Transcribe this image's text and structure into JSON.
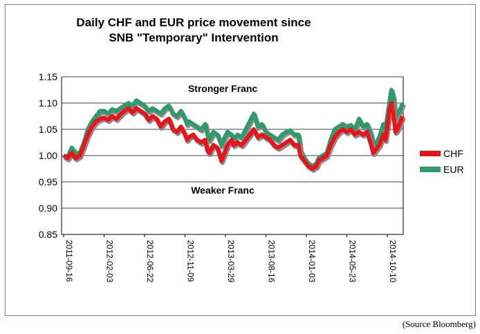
{
  "chart_data": {
    "type": "line",
    "title_lines": [
      "Daily CHF and EUR price movement since",
      "SNB \"Temporary\" Intervention"
    ],
    "xlabel": "",
    "ylabel": "",
    "ylim": [
      0.85,
      1.15
    ],
    "yticks": [
      "0.85",
      "0.90",
      "0.95",
      "1.00",
      "1.05",
      "1.10",
      "1.15"
    ],
    "categories": [
      "2011-09-16",
      "2012-02-03",
      "2012-06-22",
      "2012-11-09",
      "2013-03-29",
      "2013-08-16",
      "2014-01-03",
      "2014-05-23",
      "2014-10-10"
    ],
    "grid": true,
    "legend_position": "right",
    "annotations": [
      "Stronger Franc",
      "Weaker Franc"
    ],
    "series": [
      {
        "name": "CHF",
        "color": "#e8141c",
        "points": [
          [
            0,
            1.0
          ],
          [
            0.1,
            0.995
          ],
          [
            0.2,
            1.005
          ],
          [
            0.3,
            0.995
          ],
          [
            0.4,
            1.0
          ],
          [
            0.5,
            1.02
          ],
          [
            0.6,
            1.04
          ],
          [
            0.7,
            1.055
          ],
          [
            0.8,
            1.065
          ],
          [
            0.9,
            1.07
          ],
          [
            1.0,
            1.072
          ],
          [
            1.1,
            1.068
          ],
          [
            1.2,
            1.075
          ],
          [
            1.3,
            1.07
          ],
          [
            1.4,
            1.078
          ],
          [
            1.5,
            1.085
          ],
          [
            1.6,
            1.09
          ],
          [
            1.7,
            1.082
          ],
          [
            1.8,
            1.09
          ],
          [
            1.9,
            1.085
          ],
          [
            2.0,
            1.08
          ],
          [
            2.1,
            1.068
          ],
          [
            2.2,
            1.075
          ],
          [
            2.3,
            1.07
          ],
          [
            2.4,
            1.055
          ],
          [
            2.5,
            1.065
          ],
          [
            2.6,
            1.07
          ],
          [
            2.7,
            1.05
          ],
          [
            2.8,
            1.045
          ],
          [
            2.9,
            1.055
          ],
          [
            3.0,
            1.04
          ],
          [
            3.05,
            1.03
          ],
          [
            3.1,
            1.035
          ],
          [
            3.2,
            1.04
          ],
          [
            3.3,
            1.03
          ],
          [
            3.4,
            1.025
          ],
          [
            3.5,
            1.03
          ],
          [
            3.55,
            1.01
          ],
          [
            3.6,
            1.005
          ],
          [
            3.7,
            1.02
          ],
          [
            3.8,
            1.015
          ],
          [
            3.9,
            0.99
          ],
          [
            3.95,
            1.0
          ],
          [
            4.05,
            1.02
          ],
          [
            4.15,
            1.03
          ],
          [
            4.2,
            1.02
          ],
          [
            4.3,
            1.025
          ],
          [
            4.4,
            1.02
          ],
          [
            4.5,
            1.03
          ],
          [
            4.6,
            1.04
          ],
          [
            4.7,
            1.05
          ],
          [
            4.8,
            1.035
          ],
          [
            4.9,
            1.04
          ],
          [
            5.0,
            1.035
          ],
          [
            5.1,
            1.03
          ],
          [
            5.2,
            1.02
          ],
          [
            5.3,
            1.015
          ],
          [
            5.4,
            1.02
          ],
          [
            5.5,
            1.025
          ],
          [
            5.6,
            1.03
          ],
          [
            5.7,
            1.02
          ],
          [
            5.8,
            1.02
          ],
          [
            5.85,
            1.0
          ],
          [
            5.95,
            0.99
          ],
          [
            6.05,
            0.98
          ],
          [
            6.15,
            0.975
          ],
          [
            6.25,
            0.98
          ],
          [
            6.3,
            0.99
          ],
          [
            6.4,
            0.995
          ],
          [
            6.5,
            1.0
          ],
          [
            6.6,
            1.02
          ],
          [
            6.7,
            1.035
          ],
          [
            6.8,
            1.045
          ],
          [
            6.9,
            1.05
          ],
          [
            7.0,
            1.045
          ],
          [
            7.1,
            1.05
          ],
          [
            7.2,
            1.04
          ],
          [
            7.3,
            1.045
          ],
          [
            7.4,
            1.04
          ],
          [
            7.5,
            1.045
          ],
          [
            7.6,
            1.02
          ],
          [
            7.65,
            1.005
          ],
          [
            7.7,
            1.01
          ],
          [
            7.8,
            1.02
          ],
          [
            7.9,
            1.04
          ],
          [
            7.95,
            1.03
          ],
          [
            8.0,
            1.055
          ],
          [
            8.05,
            1.085
          ],
          [
            8.1,
            1.1
          ],
          [
            8.15,
            1.08
          ],
          [
            8.2,
            1.045
          ],
          [
            8.25,
            1.05
          ],
          [
            8.3,
            1.06
          ],
          [
            8.38,
            1.075
          ]
        ]
      },
      {
        "name": "EUR",
        "color": "#2f9a6a",
        "points": [
          [
            0,
            1.0
          ],
          [
            0.1,
            0.998
          ],
          [
            0.2,
            1.015
          ],
          [
            0.3,
            1.005
          ],
          [
            0.4,
            1.005
          ],
          [
            0.5,
            1.025
          ],
          [
            0.6,
            1.05
          ],
          [
            0.7,
            1.065
          ],
          [
            0.8,
            1.075
          ],
          [
            0.9,
            1.085
          ],
          [
            1.0,
            1.085
          ],
          [
            1.1,
            1.08
          ],
          [
            1.2,
            1.088
          ],
          [
            1.3,
            1.085
          ],
          [
            1.4,
            1.09
          ],
          [
            1.5,
            1.095
          ],
          [
            1.6,
            1.1
          ],
          [
            1.7,
            1.095
          ],
          [
            1.8,
            1.105
          ],
          [
            1.9,
            1.1
          ],
          [
            2.0,
            1.095
          ],
          [
            2.1,
            1.085
          ],
          [
            2.2,
            1.09
          ],
          [
            2.3,
            1.085
          ],
          [
            2.4,
            1.08
          ],
          [
            2.5,
            1.09
          ],
          [
            2.6,
            1.095
          ],
          [
            2.7,
            1.08
          ],
          [
            2.8,
            1.075
          ],
          [
            2.9,
            1.085
          ],
          [
            3.0,
            1.07
          ],
          [
            3.05,
            1.06
          ],
          [
            3.1,
            1.065
          ],
          [
            3.2,
            1.06
          ],
          [
            3.3,
            1.055
          ],
          [
            3.4,
            1.05
          ],
          [
            3.5,
            1.06
          ],
          [
            3.55,
            1.04
          ],
          [
            3.6,
            1.03
          ],
          [
            3.7,
            1.045
          ],
          [
            3.8,
            1.04
          ],
          [
            3.9,
            1.02
          ],
          [
            3.95,
            1.03
          ],
          [
            4.05,
            1.045
          ],
          [
            4.15,
            1.04
          ],
          [
            4.2,
            1.03
          ],
          [
            4.3,
            1.04
          ],
          [
            4.4,
            1.035
          ],
          [
            4.5,
            1.05
          ],
          [
            4.6,
            1.065
          ],
          [
            4.7,
            1.08
          ],
          [
            4.8,
            1.055
          ],
          [
            4.9,
            1.06
          ],
          [
            5.0,
            1.045
          ],
          [
            5.1,
            1.04
          ],
          [
            5.2,
            1.035
          ],
          [
            5.3,
            1.03
          ],
          [
            5.4,
            1.04
          ],
          [
            5.5,
            1.045
          ],
          [
            5.6,
            1.048
          ],
          [
            5.7,
            1.04
          ],
          [
            5.8,
            1.04
          ],
          [
            5.85,
            1.01
          ],
          [
            5.95,
            0.995
          ],
          [
            6.05,
            0.985
          ],
          [
            6.15,
            0.98
          ],
          [
            6.25,
            0.985
          ],
          [
            6.3,
            0.995
          ],
          [
            6.4,
            1.0
          ],
          [
            6.5,
            1.005
          ],
          [
            6.6,
            1.03
          ],
          [
            6.7,
            1.05
          ],
          [
            6.8,
            1.055
          ],
          [
            6.9,
            1.06
          ],
          [
            7.0,
            1.055
          ],
          [
            7.1,
            1.058
          ],
          [
            7.2,
            1.05
          ],
          [
            7.3,
            1.07
          ],
          [
            7.4,
            1.055
          ],
          [
            7.5,
            1.06
          ],
          [
            7.6,
            1.04
          ],
          [
            7.65,
            1.015
          ],
          [
            7.7,
            1.02
          ],
          [
            7.8,
            1.035
          ],
          [
            7.9,
            1.06
          ],
          [
            7.95,
            1.05
          ],
          [
            8.0,
            1.075
          ],
          [
            8.05,
            1.1
          ],
          [
            8.1,
            1.125
          ],
          [
            8.15,
            1.11
          ],
          [
            8.2,
            1.07
          ],
          [
            8.25,
            1.08
          ],
          [
            8.3,
            1.085
          ],
          [
            8.38,
            1.1
          ]
        ]
      }
    ]
  },
  "source_note": "(Source Bloomberg)"
}
